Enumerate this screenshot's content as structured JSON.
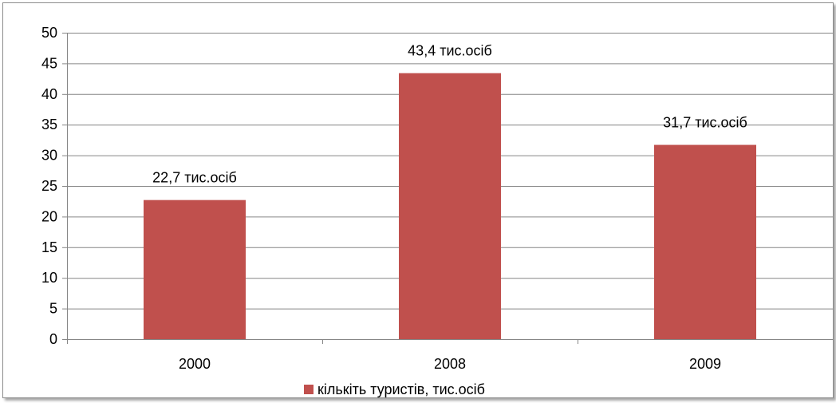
{
  "chart_data": {
    "type": "bar",
    "title": "",
    "xlabel": "",
    "ylabel": "",
    "categories": [
      "2000",
      "2008",
      "2009"
    ],
    "series": [
      {
        "name": "кількіть туристів, тис.осіб",
        "values": [
          22.7,
          43.4,
          31.7
        ],
        "data_labels": [
          "22,7 тис.осіб",
          "43,4 тис.осіб",
          "31,7 тис.осіб"
        ],
        "color": "#c0504d"
      }
    ],
    "ylim": [
      0,
      50
    ],
    "yticks": [
      "0",
      "5",
      "10",
      "15",
      "20",
      "25",
      "30",
      "35",
      "40",
      "45",
      "50"
    ],
    "ytick_values": [
      0,
      5,
      10,
      15,
      20,
      25,
      30,
      35,
      40,
      45,
      50
    ],
    "grid": true,
    "grid_color": "#868686",
    "legend_position": "bottom"
  }
}
